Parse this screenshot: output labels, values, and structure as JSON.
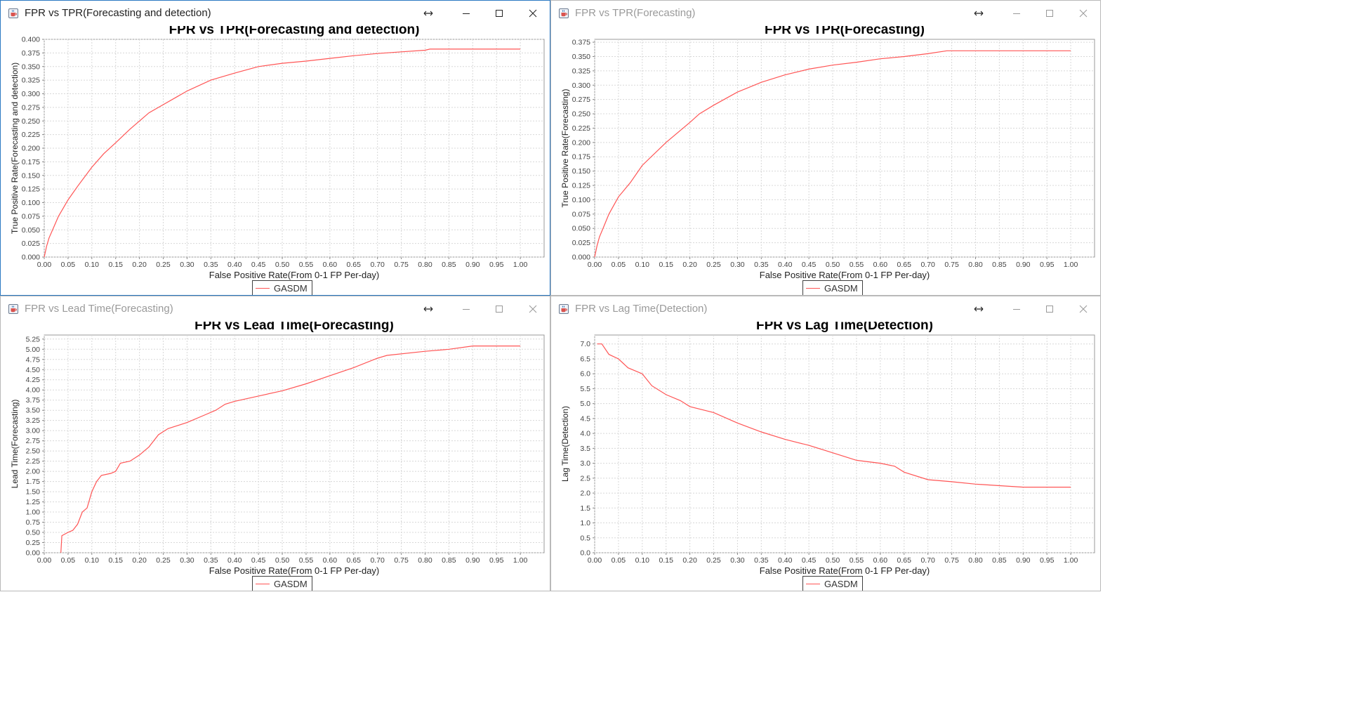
{
  "windows": [
    {
      "title": "FPR vs TPR(Forecasting and detection)",
      "active": true,
      "chart_data": {
        "type": "line",
        "title": "FPR vs TPR(Forecasting and detection)",
        "xlabel": "False Positive Rate(From 0-1 FP Per-day)",
        "ylabel": "True Positive Rate(Forecasting and detection)",
        "xlim": [
          0,
          1.05
        ],
        "ylim": [
          0,
          0.4
        ],
        "xticks": [
          "0.00",
          "0.05",
          "0.10",
          "0.15",
          "0.20",
          "0.25",
          "0.30",
          "0.35",
          "0.40",
          "0.45",
          "0.50",
          "0.55",
          "0.60",
          "0.65",
          "0.70",
          "0.75",
          "0.80",
          "0.85",
          "0.90",
          "0.95",
          "1.00"
        ],
        "yticks": [
          "0.000",
          "0.025",
          "0.050",
          "0.075",
          "0.100",
          "0.125",
          "0.150",
          "0.175",
          "0.200",
          "0.225",
          "0.250",
          "0.275",
          "0.300",
          "0.325",
          "0.350",
          "0.375",
          "0.400"
        ],
        "grid": true,
        "legend": "bottom-center",
        "series": [
          {
            "name": "GASDM",
            "color": "#ff5555",
            "points": [
              [
                0,
                0
              ],
              [
                0.005,
                0.02
              ],
              [
                0.01,
                0.035
              ],
              [
                0.02,
                0.055
              ],
              [
                0.03,
                0.075
              ],
              [
                0.04,
                0.09
              ],
              [
                0.05,
                0.105
              ],
              [
                0.07,
                0.13
              ],
              [
                0.1,
                0.165
              ],
              [
                0.125,
                0.19
              ],
              [
                0.15,
                0.21
              ],
              [
                0.18,
                0.235
              ],
              [
                0.2,
                0.25
              ],
              [
                0.22,
                0.265
              ],
              [
                0.25,
                0.28
              ],
              [
                0.3,
                0.305
              ],
              [
                0.35,
                0.325
              ],
              [
                0.4,
                0.338
              ],
              [
                0.45,
                0.35
              ],
              [
                0.5,
                0.356
              ],
              [
                0.55,
                0.36
              ],
              [
                0.6,
                0.365
              ],
              [
                0.65,
                0.37
              ],
              [
                0.7,
                0.374
              ],
              [
                0.75,
                0.377
              ],
              [
                0.8,
                0.38
              ],
              [
                0.81,
                0.382
              ],
              [
                0.9,
                0.382
              ],
              [
                1.0,
                0.382
              ]
            ]
          }
        ]
      }
    },
    {
      "title": "FPR vs TPR(Forecasting)",
      "active": false,
      "chart_data": {
        "type": "line",
        "title": "FPR vs TPR(Forecasting)",
        "xlabel": "False Positive Rate(From 0-1 FP Per-day)",
        "ylabel": "True Positive Rate(Forecasting)",
        "xlim": [
          0,
          1.05
        ],
        "ylim": [
          0,
          0.38
        ],
        "xticks": [
          "0.00",
          "0.05",
          "0.10",
          "0.15",
          "0.20",
          "0.25",
          "0.30",
          "0.35",
          "0.40",
          "0.45",
          "0.50",
          "0.55",
          "0.60",
          "0.65",
          "0.70",
          "0.75",
          "0.80",
          "0.85",
          "0.90",
          "0.95",
          "1.00"
        ],
        "yticks": [
          "0.000",
          "0.025",
          "0.050",
          "0.075",
          "0.100",
          "0.125",
          "0.150",
          "0.175",
          "0.200",
          "0.225",
          "0.250",
          "0.275",
          "0.300",
          "0.325",
          "0.350",
          "0.375"
        ],
        "grid": true,
        "legend": "bottom-center",
        "series": [
          {
            "name": "GASDM",
            "color": "#ff5555",
            "points": [
              [
                0,
                0
              ],
              [
                0.005,
                0.02
              ],
              [
                0.01,
                0.035
              ],
              [
                0.02,
                0.055
              ],
              [
                0.03,
                0.075
              ],
              [
                0.05,
                0.105
              ],
              [
                0.075,
                0.13
              ],
              [
                0.1,
                0.16
              ],
              [
                0.15,
                0.2
              ],
              [
                0.2,
                0.235
              ],
              [
                0.22,
                0.25
              ],
              [
                0.25,
                0.265
              ],
              [
                0.3,
                0.288
              ],
              [
                0.35,
                0.305
              ],
              [
                0.4,
                0.318
              ],
              [
                0.45,
                0.328
              ],
              [
                0.5,
                0.335
              ],
              [
                0.55,
                0.34
              ],
              [
                0.6,
                0.346
              ],
              [
                0.65,
                0.35
              ],
              [
                0.7,
                0.355
              ],
              [
                0.74,
                0.36
              ],
              [
                0.8,
                0.36
              ],
              [
                0.9,
                0.36
              ],
              [
                1.0,
                0.36
              ]
            ]
          }
        ]
      }
    },
    {
      "title": "FPR vs Lead Time(Forecasting)",
      "active": false,
      "chart_data": {
        "type": "line",
        "title": "FPR vs Lead Time(Forecasting)",
        "xlabel": "False Positive Rate(From 0-1 FP Per-day)",
        "ylabel": "Lead Time(Forecasting)",
        "xlim": [
          0,
          1.05
        ],
        "ylim": [
          0,
          5.35
        ],
        "xticks": [
          "0.00",
          "0.05",
          "0.10",
          "0.15",
          "0.20",
          "0.25",
          "0.30",
          "0.35",
          "0.40",
          "0.45",
          "0.50",
          "0.55",
          "0.60",
          "0.65",
          "0.70",
          "0.75",
          "0.80",
          "0.85",
          "0.90",
          "0.95",
          "1.00"
        ],
        "yticks": [
          "0.00",
          "0.25",
          "0.50",
          "0.75",
          "1.00",
          "1.25",
          "1.50",
          "1.75",
          "2.00",
          "2.25",
          "2.50",
          "2.75",
          "3.00",
          "3.25",
          "3.50",
          "3.75",
          "4.00",
          "4.25",
          "4.50",
          "4.75",
          "5.00",
          "5.25"
        ],
        "grid": true,
        "legend": "bottom-center",
        "series": [
          {
            "name": "GASDM",
            "color": "#ff5555",
            "points": [
              [
                0.035,
                0
              ],
              [
                0.037,
                0.42
              ],
              [
                0.05,
                0.5
              ],
              [
                0.06,
                0.55
              ],
              [
                0.07,
                0.7
              ],
              [
                0.08,
                1.0
              ],
              [
                0.09,
                1.1
              ],
              [
                0.1,
                1.5
              ],
              [
                0.11,
                1.75
              ],
              [
                0.12,
                1.9
              ],
              [
                0.14,
                1.95
              ],
              [
                0.15,
                2.0
              ],
              [
                0.16,
                2.2
              ],
              [
                0.18,
                2.25
              ],
              [
                0.2,
                2.4
              ],
              [
                0.22,
                2.6
              ],
              [
                0.24,
                2.9
              ],
              [
                0.26,
                3.05
              ],
              [
                0.3,
                3.2
              ],
              [
                0.34,
                3.4
              ],
              [
                0.36,
                3.5
              ],
              [
                0.38,
                3.65
              ],
              [
                0.4,
                3.72
              ],
              [
                0.45,
                3.85
              ],
              [
                0.5,
                3.98
              ],
              [
                0.55,
                4.15
              ],
              [
                0.6,
                4.35
              ],
              [
                0.65,
                4.55
              ],
              [
                0.7,
                4.78
              ],
              [
                0.72,
                4.85
              ],
              [
                0.8,
                4.95
              ],
              [
                0.85,
                5.0
              ],
              [
                0.9,
                5.08
              ],
              [
                1.0,
                5.08
              ]
            ]
          }
        ]
      }
    },
    {
      "title": "FPR vs Lag Time(Detection)",
      "active": false,
      "chart_data": {
        "type": "line",
        "title": "FPR vs Lag Time(Detection)",
        "xlabel": "False Positive Rate(From 0-1 FP Per-day)",
        "ylabel": "Lag Time(Detection)",
        "xlim": [
          0,
          1.05
        ],
        "ylim": [
          0,
          7.3
        ],
        "xticks": [
          "0.00",
          "0.05",
          "0.10",
          "0.15",
          "0.20",
          "0.25",
          "0.30",
          "0.35",
          "0.40",
          "0.45",
          "0.50",
          "0.55",
          "0.60",
          "0.65",
          "0.70",
          "0.75",
          "0.80",
          "0.85",
          "0.90",
          "0.95",
          "1.00"
        ],
        "yticks": [
          "0.0",
          "0.5",
          "1.0",
          "1.5",
          "2.0",
          "2.5",
          "3.0",
          "3.5",
          "4.0",
          "4.5",
          "5.0",
          "5.5",
          "6.0",
          "6.5",
          "7.0"
        ],
        "grid": true,
        "legend": "bottom-center",
        "series": [
          {
            "name": "GASDM",
            "color": "#ff5555",
            "points": [
              [
                0.005,
                7.0
              ],
              [
                0.015,
                7.0
              ],
              [
                0.03,
                6.65
              ],
              [
                0.05,
                6.5
              ],
              [
                0.07,
                6.2
              ],
              [
                0.1,
                6.0
              ],
              [
                0.12,
                5.6
              ],
              [
                0.15,
                5.3
              ],
              [
                0.18,
                5.1
              ],
              [
                0.2,
                4.9
              ],
              [
                0.25,
                4.7
              ],
              [
                0.3,
                4.35
              ],
              [
                0.35,
                4.05
              ],
              [
                0.4,
                3.8
              ],
              [
                0.45,
                3.6
              ],
              [
                0.5,
                3.35
              ],
              [
                0.55,
                3.1
              ],
              [
                0.6,
                3.0
              ],
              [
                0.63,
                2.9
              ],
              [
                0.65,
                2.7
              ],
              [
                0.7,
                2.45
              ],
              [
                0.75,
                2.38
              ],
              [
                0.8,
                2.3
              ],
              [
                0.85,
                2.25
              ],
              [
                0.9,
                2.2
              ],
              [
                1.0,
                2.2
              ]
            ]
          }
        ]
      }
    }
  ]
}
